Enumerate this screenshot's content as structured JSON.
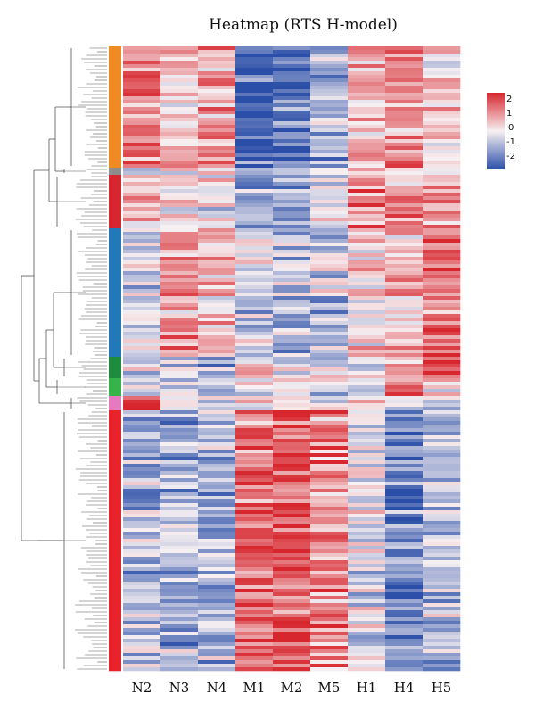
{
  "chart_data": {
    "type": "heatmap",
    "title": "Heatmap (RTS H-model)",
    "columns": [
      "N2",
      "N3",
      "N4",
      "M1",
      "M2",
      "M5",
      "H1",
      "H4",
      "H5"
    ],
    "legend": {
      "ticks": [
        "2",
        "1",
        "0",
        "-1",
        "-2"
      ],
      "value_range": [
        -2.5,
        2.5
      ],
      "colors": {
        "high": "#d7262e",
        "mid": "#f7f0f2",
        "low": "#2b4fa8"
      }
    },
    "row_clusters": [
      {
        "color": "#f08a22",
        "rows": 34
      },
      {
        "color": "#8c8c8c",
        "rows": 2
      },
      {
        "color": "#d7262e",
        "rows": 15
      },
      {
        "color": "#2279b8",
        "rows": 36
      },
      {
        "color": "#1e8c3e",
        "rows": 6
      },
      {
        "color": "#36b349",
        "rows": 5
      },
      {
        "color": "#e57ac0",
        "rows": 4
      },
      {
        "color": "#e8242a",
        "rows": 73
      }
    ],
    "cluster_profiles": [
      [
        1.2,
        0.5,
        0.9,
        -2.0,
        -1.8,
        -1.0,
        0.6,
        1.0,
        0.2
      ],
      [
        0.0,
        0.0,
        0.0,
        -1.0,
        -1.5,
        -0.5,
        0.5,
        0.5,
        0.5
      ],
      [
        0.6,
        0.2,
        0.0,
        -1.0,
        -1.0,
        -0.3,
        1.2,
        1.0,
        1.0
      ],
      [
        -0.5,
        0.9,
        0.7,
        -0.5,
        -0.8,
        -0.6,
        0.2,
        0.6,
        1.4
      ],
      [
        -0.6,
        -0.3,
        -1.0,
        0.2,
        -0.3,
        -0.5,
        -0.3,
        0.6,
        1.6
      ],
      [
        -0.4,
        -0.2,
        -0.8,
        0.2,
        -0.2,
        -0.3,
        -0.4,
        1.6,
        0.5
      ],
      [
        2.0,
        0.2,
        -0.3,
        0.1,
        0.3,
        -0.4,
        0.1,
        -0.4,
        -0.3
      ],
      [
        -0.7,
        -0.9,
        -0.8,
        1.4,
        1.7,
        1.1,
        -0.4,
        -1.5,
        -0.6
      ]
    ]
  }
}
